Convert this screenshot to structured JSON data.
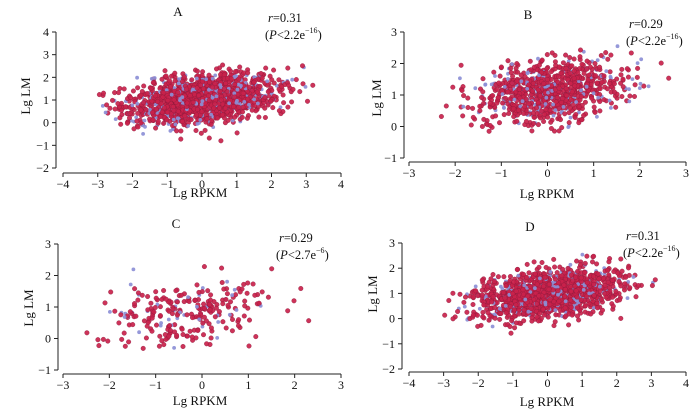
{
  "chart_data": [
    {
      "panel": "A",
      "type": "scatter",
      "title": "A",
      "xlabel": "Lg RPKM",
      "ylabel": "Lg LM",
      "xlim": [
        -4,
        4
      ],
      "ylim": [
        -2,
        4
      ],
      "xticks": [
        "−4",
        "−3",
        "−2",
        "−1",
        "0",
        "1",
        "2",
        "3",
        "4"
      ],
      "yticks": [
        "−2",
        "−1",
        "0",
        "1",
        "2",
        "3",
        "4"
      ],
      "r_label": "r",
      "r_value": "=0.31",
      "p_open": "(",
      "p_label": "P",
      "p_value": "<2.2e",
      "p_exp": "−16",
      "p_close": ")",
      "n_points": 1700,
      "x_mean": 0.0,
      "x_sd": 1.05,
      "y_mean": 1.05,
      "y_sd": 0.55,
      "r": 0.31,
      "x_clip": [
        -3.1,
        3.2
      ],
      "y_clip": [
        -0.9,
        2.6
      ]
    },
    {
      "panel": "B",
      "type": "scatter",
      "title": "B",
      "xlabel": "Lg RPKM",
      "ylabel": "Lg LM",
      "xlim": [
        -3,
        3
      ],
      "ylim": [
        -1,
        3
      ],
      "xticks": [
        "−3",
        "−2",
        "−1",
        "0",
        "1",
        "2",
        "3"
      ],
      "yticks": [
        "−1",
        "0",
        "1",
        "2",
        "3"
      ],
      "r_label": "r",
      "r_value": "=0.29",
      "p_open": "(",
      "p_label": "P",
      "p_value": "<2.2e",
      "p_exp": "−16",
      "p_close": ")",
      "n_points": 900,
      "x_mean": 0.0,
      "x_sd": 0.82,
      "y_mean": 1.1,
      "y_sd": 0.5,
      "r": 0.29,
      "x_clip": [
        -2.8,
        2.7
      ],
      "y_clip": [
        -0.2,
        2.6
      ]
    },
    {
      "panel": "C",
      "type": "scatter",
      "title": "C",
      "xlabel": "Lg RPKM",
      "ylabel": "Lg LM",
      "xlim": [
        -3,
        3
      ],
      "ylim": [
        -1,
        3
      ],
      "xticks": [
        "−3",
        "−2",
        "−1",
        "0",
        "1",
        "2",
        "3"
      ],
      "yticks": [
        "−1",
        "0",
        "1",
        "2",
        "3"
      ],
      "r_label": "r",
      "r_value": "=0.29",
      "p_open": "(",
      "p_label": "P",
      "p_value": "<2.7e",
      "p_exp": "−6",
      "p_close": ")",
      "n_points": 260,
      "x_mean": -0.5,
      "x_sd": 0.95,
      "y_mean": 0.8,
      "y_sd": 0.55,
      "r": 0.29,
      "x_clip": [
        -2.7,
        2.6
      ],
      "y_clip": [
        -0.6,
        2.6
      ]
    },
    {
      "panel": "D",
      "type": "scatter",
      "title": "D",
      "xlabel": "Lg RPKM",
      "ylabel": "Lg LM",
      "xlim": [
        -4,
        4
      ],
      "ylim": [
        -2,
        3
      ],
      "xticks": [
        "−4",
        "−3",
        "−2",
        "−1",
        "0",
        "1",
        "2",
        "3",
        "4"
      ],
      "yticks": [
        "−2",
        "−1",
        "0",
        "1",
        "2",
        "3"
      ],
      "r_label": "r",
      "r_value": "=0.31",
      "p_open": "(",
      "p_label": "P",
      "p_value": "<2.2e",
      "p_exp": "−16",
      "p_close": ")",
      "n_points": 1500,
      "x_mean": 0.0,
      "x_sd": 1.05,
      "y_mean": 1.0,
      "y_sd": 0.5,
      "r": 0.31,
      "x_clip": [
        -3.1,
        3.2
      ],
      "y_clip": [
        -0.9,
        2.6
      ]
    }
  ],
  "colors": {
    "point_fill": "#c9224b",
    "point_edge": "#8a1a3c",
    "overlap_tint": "#8c8fd6",
    "axis": "#222222"
  }
}
